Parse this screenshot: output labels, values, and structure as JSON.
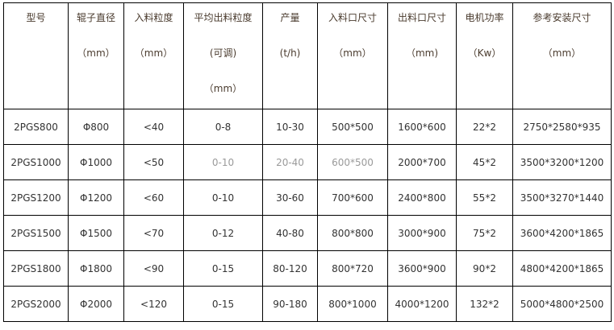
{
  "headers": [
    {
      "lines": [
        "型号"
      ]
    },
    {
      "lines": [
        "辊子直径",
        "（mm）"
      ]
    },
    {
      "lines": [
        "入料粒度",
        "（mm）"
      ]
    },
    {
      "lines": [
        "平均出料粒度",
        "(可调)",
        "（mm）"
      ]
    },
    {
      "lines": [
        "产量",
        "(t/h)"
      ]
    },
    {
      "lines": [
        "入料口尺寸",
        "（mm）"
      ]
    },
    {
      "lines": [
        "出料口尺寸",
        "（mm)"
      ]
    },
    {
      "lines": [
        "电机功率",
        "（Kw）"
      ]
    },
    {
      "lines": [
        "参考安装尺寸",
        "（mm）"
      ]
    }
  ],
  "rows": [
    [
      "2PGS800",
      "Φ800",
      "<40",
      "0-8",
      "10-30",
      "500*500",
      "1600*600",
      "22*2",
      "2750*2580*935"
    ],
    [
      "2PGS1000",
      "Φ1000",
      "<50",
      "0-10",
      "20-40",
      "600*500",
      "2000*700",
      "45*2",
      "3500*3200*1200"
    ],
    [
      "2PGS1200",
      "Φ1200",
      "<60",
      "0-10",
      "30-60",
      "700*600",
      "2400*800",
      "55*2",
      "3500*3270*1440"
    ],
    [
      "2PGS1500",
      "Φ1500",
      "<70",
      "0-12",
      "40-80",
      "800*800",
      "3000*900",
      "75*2",
      "3600*4200*1865"
    ],
    [
      "2PGS1800",
      "Φ1800",
      "<90",
      "0-15",
      "80-120",
      "800*720",
      "3600*900",
      "90*2",
      "4800*4200*1865"
    ],
    [
      "2PGS2000",
      "Φ2000",
      "<120",
      "0-15",
      "90-180",
      "800*1000",
      "4000*1200",
      "132*2",
      "5000*4800*2500"
    ]
  ]
}
